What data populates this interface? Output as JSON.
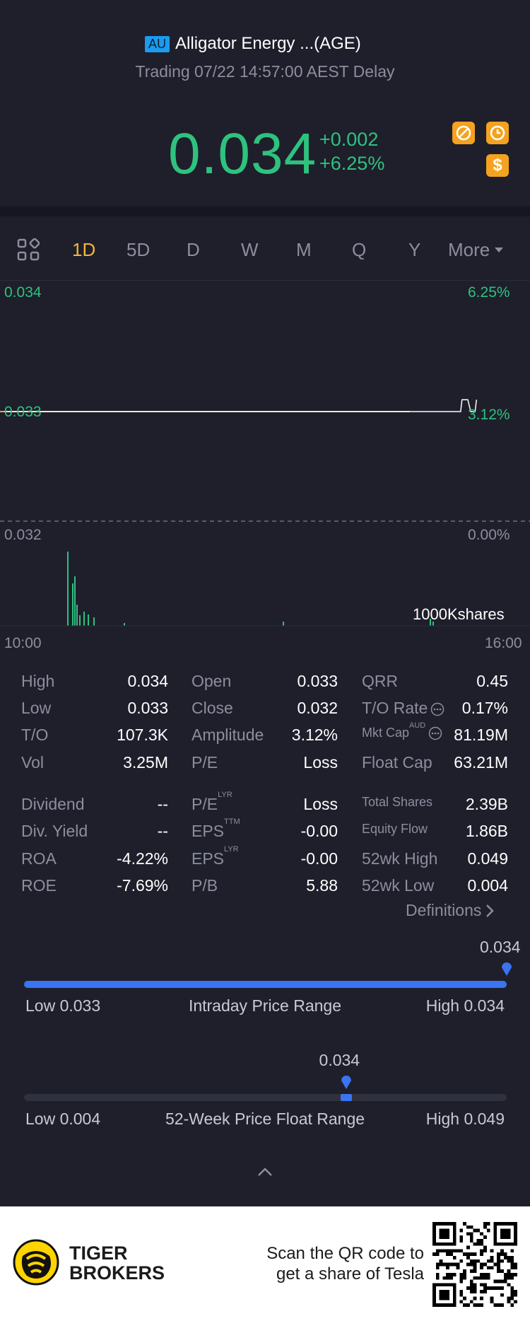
{
  "header": {
    "market_badge": "AU",
    "title": "Alligator Energy ...(AGE)",
    "status": "Trading 07/22 14:57:00 AEST Delay",
    "price": "0.034",
    "change_abs": "+0.002",
    "change_pct": "+6.25%",
    "icons": [
      "no-short-icon",
      "clock-icon",
      "dollar-icon"
    ]
  },
  "tabs": {
    "items": [
      "1D",
      "5D",
      "D",
      "W",
      "M",
      "Q",
      "Y"
    ],
    "active": "1D",
    "more": "More"
  },
  "chart_data": {
    "type": "line",
    "price_axis": {
      "top": "0.034",
      "mid": "0.033",
      "bottom": "0.032"
    },
    "pct_axis": {
      "top": "6.25%",
      "mid": "3.12%",
      "bottom": "0.00%"
    },
    "x_start": "10:00",
    "x_end": "16:00",
    "volume_label": "1000Kshares",
    "series": [
      {
        "x": [
          "10:00",
          "15:15",
          "15:16",
          "15:20",
          "15:22",
          "15:25",
          "15:26"
        ],
        "y": [
          0.033,
          0.033,
          0.034,
          0.034,
          0.033,
          0.033,
          0.034
        ]
      }
    ]
  },
  "stats": {
    "col1": [
      {
        "label": "High",
        "value": "0.034"
      },
      {
        "label": "Low",
        "value": "0.033"
      },
      {
        "label": "T/O",
        "value": "107.3K"
      },
      {
        "label": "Vol",
        "value": "3.25M"
      },
      {
        "label": "Dividend",
        "value": "--"
      },
      {
        "label": "Div. Yield",
        "value": "--"
      },
      {
        "label": "ROA",
        "value": "-4.22%"
      },
      {
        "label": "ROE",
        "value": "-7.69%"
      }
    ],
    "col2": [
      {
        "label": "Open",
        "value": "0.033"
      },
      {
        "label": "Close",
        "value": "0.032"
      },
      {
        "label": "Amplitude",
        "value": "3.12%"
      },
      {
        "label": "P/E",
        "value": "Loss"
      },
      {
        "label": "P/E",
        "sup": "LYR",
        "value": "Loss"
      },
      {
        "label": "EPS",
        "sup": "TTM",
        "value": "-0.00"
      },
      {
        "label": "EPS",
        "sup": "LYR",
        "value": "-0.00"
      },
      {
        "label": "P/B",
        "value": "5.88"
      }
    ],
    "col3": [
      {
        "label": "QRR",
        "value": "0.45"
      },
      {
        "label": "T/O Rate",
        "value": "0.17%"
      },
      {
        "label": "Mkt Cap",
        "sup": "AUD",
        "value": "81.19M"
      },
      {
        "label": "Float Cap",
        "value": "63.21M"
      },
      {
        "label": "Total Shares",
        "value": "2.39B"
      },
      {
        "label": "Equity Flow",
        "value": "1.86B"
      },
      {
        "label": "52wk High",
        "value": "0.049"
      },
      {
        "label": "52wk Low",
        "value": "0.004"
      }
    ],
    "definitions": "Definitions"
  },
  "intraday_range": {
    "current": "0.034",
    "low": "Low 0.033",
    "title": "Intraday Price Range",
    "high": "High 0.034",
    "position": 1.0
  },
  "week52_range": {
    "current": "0.034",
    "low": "Low 0.004",
    "title": "52-Week Price Float Range",
    "high": "High 0.049",
    "position": 0.667
  },
  "footer": {
    "brand_line1": "TIGER",
    "brand_line2": "BROKERS",
    "scan_line1": "Scan the QR code to",
    "scan_line2": "get a share of Tesla"
  },
  "colors": {
    "accent": "#f3b63b",
    "up": "#2ec27e",
    "range_blue": "#3a74f2",
    "background": "#1e1f2b"
  }
}
